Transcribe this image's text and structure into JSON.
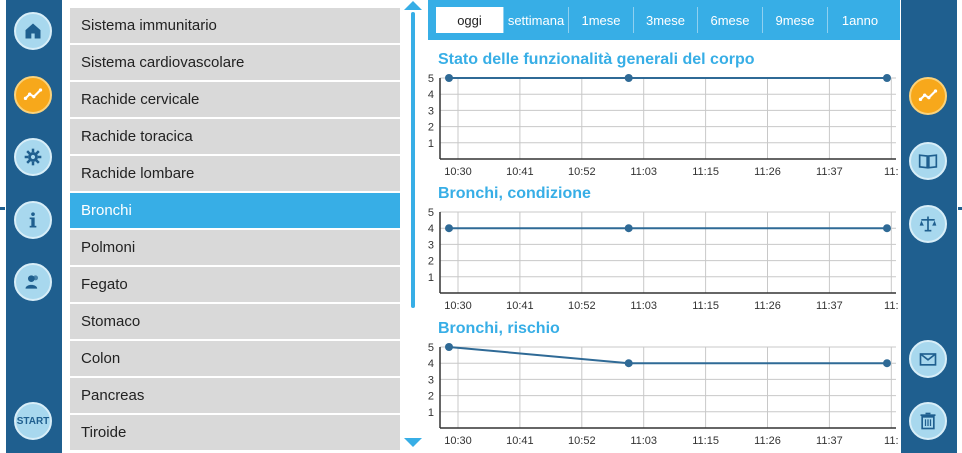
{
  "left_nav": {
    "items": [
      {
        "icon": "home-icon",
        "active": false
      },
      {
        "icon": "chart-line-icon",
        "active": true
      },
      {
        "icon": "gear-icon",
        "active": false
      },
      {
        "icon": "info-icon",
        "active": false
      },
      {
        "icon": "users-icon",
        "active": false
      }
    ],
    "start_label": "START"
  },
  "right_nav": {
    "items": [
      {
        "icon": "chart-line-icon",
        "active": true
      },
      {
        "icon": "book-icon",
        "active": false
      },
      {
        "icon": "scale-icon",
        "active": false
      },
      {
        "icon": "mail-icon",
        "active": false
      },
      {
        "icon": "trash-icon",
        "active": false
      }
    ]
  },
  "colors": {
    "accent": "#37aee6",
    "sidebar": "#1f5f8f",
    "active_button": "#f7a81b",
    "list_item": "#d9d9d9",
    "series": "#2f6a96"
  },
  "body_list": [
    {
      "label": "Sistema immunitario",
      "selected": false
    },
    {
      "label": "Sistema cardiovascolare",
      "selected": false
    },
    {
      "label": "Rachide cervicale",
      "selected": false
    },
    {
      "label": "Rachide toracica",
      "selected": false
    },
    {
      "label": "Rachide lombare",
      "selected": false
    },
    {
      "label": "Bronchi",
      "selected": true
    },
    {
      "label": "Polmoni",
      "selected": false
    },
    {
      "label": "Fegato",
      "selected": false
    },
    {
      "label": "Stomaco",
      "selected": false
    },
    {
      "label": "Colon",
      "selected": false
    },
    {
      "label": "Pancreas",
      "selected": false
    },
    {
      "label": "Tiroide",
      "selected": false
    }
  ],
  "periods": [
    {
      "label": "oggi",
      "active": true
    },
    {
      "label": "settimana",
      "active": false
    },
    {
      "label": "1mese",
      "active": false
    },
    {
      "label": "3mese",
      "active": false
    },
    {
      "label": "6mese",
      "active": false
    },
    {
      "label": "9mese",
      "active": false
    },
    {
      "label": "1anno",
      "active": false
    }
  ],
  "chart_data": [
    {
      "type": "line",
      "title": "Stato delle funzionalità generali del corpo",
      "x_ticks": [
        "10:30",
        "10:41",
        "10:52",
        "11:03",
        "11:15",
        "11:26",
        "11:37",
        "11:"
      ],
      "y_ticks": [
        1,
        2,
        3,
        4,
        5
      ],
      "ylim": [
        0,
        5
      ],
      "grid": true,
      "series": [
        {
          "x": [
            "10:30",
            "11:02",
            "11:48"
          ],
          "values": [
            5,
            5,
            5
          ]
        }
      ]
    },
    {
      "type": "line",
      "title": "Bronchi, condizione",
      "x_ticks": [
        "10:30",
        "10:41",
        "10:52",
        "11:03",
        "11:15",
        "11:26",
        "11:37",
        "11:"
      ],
      "y_ticks": [
        1,
        2,
        3,
        4,
        5
      ],
      "ylim": [
        0,
        5
      ],
      "grid": true,
      "series": [
        {
          "x": [
            "10:30",
            "11:02",
            "11:48"
          ],
          "values": [
            4,
            4,
            4
          ]
        }
      ]
    },
    {
      "type": "line",
      "title": "Bronchi, rischio",
      "x_ticks": [
        "10:30",
        "10:41",
        "10:52",
        "11:03",
        "11:15",
        "11:26",
        "11:37",
        "11:"
      ],
      "y_ticks": [
        1,
        2,
        3,
        4,
        5
      ],
      "ylim": [
        0,
        5
      ],
      "grid": true,
      "series": [
        {
          "x": [
            "10:30",
            "11:02",
            "11:48"
          ],
          "values": [
            5,
            4,
            4
          ]
        }
      ]
    }
  ]
}
